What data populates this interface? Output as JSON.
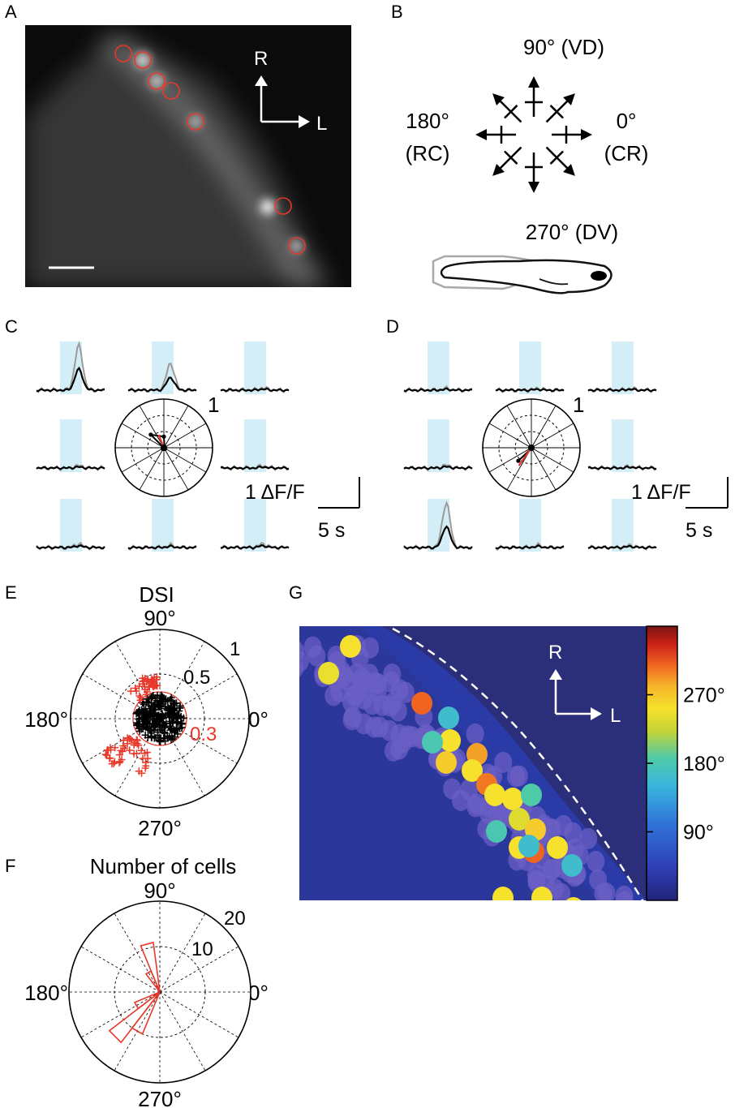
{
  "panels": {
    "A": {
      "letter": "A",
      "axis_r": "R",
      "axis_l": "L",
      "cells": [
        [
          152,
          66
        ],
        [
          176,
          74
        ],
        [
          193,
          100
        ],
        [
          211,
          112
        ],
        [
          241,
          150
        ],
        [
          349,
          254
        ],
        [
          366,
          303
        ]
      ]
    },
    "B": {
      "letter": "B",
      "top_label": "90° (VD)",
      "left_label_1": "180°",
      "left_label_2": "(RC)",
      "right_label_1": "0°",
      "right_label_2": "(CR)",
      "bottom_label": "270° (DV)"
    },
    "C": {
      "letter": "C",
      "polar_max": "1",
      "scale_y": "1 ΔF/F",
      "scale_x": "5 s",
      "peaks": [
        1.0,
        0.6,
        0.05,
        0.05,
        0.05,
        0.08,
        0.05,
        0.08
      ],
      "vector_deg": 112,
      "vector_mag": 0.28
    },
    "D": {
      "letter": "D",
      "polar_max": "1",
      "scale_y": "1 ΔF/F",
      "scale_x": "5 s",
      "peaks": [
        0.04,
        0.04,
        0.04,
        0.06,
        0.04,
        1.0,
        0.05,
        0.05
      ],
      "vector_deg": 235,
      "vector_mag": 0.45
    },
    "E": {
      "letter": "E",
      "title": "DSI",
      "label_90": "90°",
      "label_180": "180°",
      "label_0": "0°",
      "label_270": "270°",
      "ring_1": "1",
      "ring_05": "0.5",
      "threshold": "0.3",
      "threshold_value": 0.3,
      "red_color": "#e8382a"
    },
    "F": {
      "letter": "F",
      "title": "Number of cells",
      "label_90": "90°",
      "label_180": "180°",
      "label_0": "0°",
      "label_270": "270°",
      "ring_20": "20",
      "ring_10": "10",
      "rmax": 20,
      "bins": [
        {
          "deg": 105,
          "count": 11
        },
        {
          "deg": 120,
          "count": 5
        },
        {
          "deg": 210,
          "count": 6
        },
        {
          "deg": 225,
          "count": 14
        },
        {
          "deg": 240,
          "count": 10
        }
      ]
    },
    "G": {
      "letter": "G",
      "axis_r": "R",
      "axis_l": "L",
      "colorbar_ticks": [
        "270°",
        "180°",
        "90°"
      ],
      "colorbar_tick_values": [
        270,
        180,
        90
      ],
      "colorbar_range": [
        0,
        360
      ]
    }
  }
}
